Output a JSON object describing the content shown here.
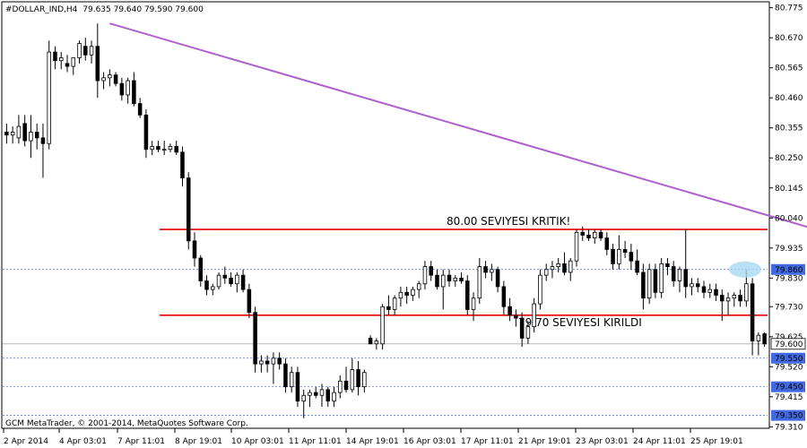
{
  "header": {
    "symbol": "#DOLLAR_IND,H4",
    "ohlc": "79.635 79.640 79.590 79.600"
  },
  "footer": {
    "copyright": "GCM MetaTrader, © 2001-2014, MetaQuotes Software Corp."
  },
  "chart_data": {
    "type": "candlestick",
    "ylim": [
      79.33,
      80.78
    ],
    "y_ticks": [
      "80.775",
      "80.670",
      "80.565",
      "80.460",
      "80.355",
      "80.250",
      "80.145",
      "80.040",
      "79.935",
      "79.830",
      "79.730",
      "79.625",
      "79.520",
      "79.415",
      "79.310"
    ],
    "x_ticks": [
      "2 Apr 2014",
      "4 Apr 03:01",
      "7 Apr 11:01",
      "8 Apr 19:01",
      "10 Apr 03:01",
      "11 Apr 11:01",
      "14 Apr 19:01",
      "16 Apr 03:01",
      "17 Apr 11:01",
      "21 Apr 19:01",
      "23 Apr 03:01",
      "24 Apr 11:01",
      "25 Apr 19:01"
    ],
    "price_labels": [
      {
        "value": 79.86,
        "text": "79.860"
      },
      {
        "value": 79.6,
        "text": "79.600"
      },
      {
        "value": 79.55,
        "text": "79.550"
      },
      {
        "value": 79.45,
        "text": "79.450"
      },
      {
        "value": 79.35,
        "text": "79.350"
      }
    ],
    "levels": [
      {
        "value": 80.0,
        "color": "#e60000",
        "label": "80.00 SEVIYESI KRITIK!"
      },
      {
        "value": 79.7,
        "color": "#e60000",
        "label": "79.70 SEVIYESI KIRILDI"
      }
    ],
    "dashed_levels": [
      79.86,
      79.55,
      79.45,
      79.35
    ],
    "trendline": {
      "x": [
        17,
        161
      ],
      "y": [
        80.72,
        79.83
      ],
      "color": "#b05fd0"
    },
    "candles": [
      {
        "o": 80.34,
        "h": 80.37,
        "l": 80.3,
        "c": 80.33
      },
      {
        "o": 80.33,
        "h": 80.36,
        "l": 80.3,
        "c": 80.34
      },
      {
        "o": 80.32,
        "h": 80.4,
        "l": 80.3,
        "c": 80.36
      },
      {
        "o": 80.37,
        "h": 80.4,
        "l": 80.29,
        "c": 80.31
      },
      {
        "o": 80.31,
        "h": 80.4,
        "l": 80.25,
        "c": 80.34
      },
      {
        "o": 80.34,
        "h": 80.37,
        "l": 80.28,
        "c": 80.32
      },
      {
        "o": 80.32,
        "h": 80.37,
        "l": 80.18,
        "c": 80.3
      },
      {
        "o": 80.3,
        "h": 80.66,
        "l": 80.28,
        "c": 80.62
      },
      {
        "o": 80.62,
        "h": 80.64,
        "l": 80.56,
        "c": 80.59
      },
      {
        "o": 80.59,
        "h": 80.62,
        "l": 80.56,
        "c": 80.6
      },
      {
        "o": 80.58,
        "h": 80.61,
        "l": 80.55,
        "c": 80.57
      },
      {
        "o": 80.57,
        "h": 80.6,
        "l": 80.54,
        "c": 80.6
      },
      {
        "o": 80.6,
        "h": 80.66,
        "l": 80.58,
        "c": 80.65
      },
      {
        "o": 80.64,
        "h": 80.67,
        "l": 80.59,
        "c": 80.61
      },
      {
        "o": 80.61,
        "h": 80.66,
        "l": 80.58,
        "c": 80.64
      },
      {
        "o": 80.64,
        "h": 80.72,
        "l": 80.46,
        "c": 80.52
      },
      {
        "o": 80.52,
        "h": 80.55,
        "l": 80.49,
        "c": 80.53
      },
      {
        "o": 80.53,
        "h": 80.56,
        "l": 80.5,
        "c": 80.54
      },
      {
        "o": 80.54,
        "h": 80.55,
        "l": 80.5,
        "c": 80.51
      },
      {
        "o": 80.51,
        "h": 80.53,
        "l": 80.45,
        "c": 80.47
      },
      {
        "o": 80.47,
        "h": 80.53,
        "l": 80.44,
        "c": 80.52
      },
      {
        "o": 80.52,
        "h": 80.55,
        "l": 80.43,
        "c": 80.44
      },
      {
        "o": 80.44,
        "h": 80.46,
        "l": 80.39,
        "c": 80.4
      },
      {
        "o": 80.4,
        "h": 80.42,
        "l": 80.25,
        "c": 80.28
      },
      {
        "o": 80.28,
        "h": 80.31,
        "l": 80.26,
        "c": 80.29
      },
      {
        "o": 80.29,
        "h": 80.31,
        "l": 80.27,
        "c": 80.28
      },
      {
        "o": 80.28,
        "h": 80.31,
        "l": 80.26,
        "c": 80.28
      },
      {
        "o": 80.28,
        "h": 80.3,
        "l": 80.27,
        "c": 80.29
      },
      {
        "o": 80.29,
        "h": 80.31,
        "l": 80.26,
        "c": 80.27
      },
      {
        "o": 80.27,
        "h": 80.29,
        "l": 80.15,
        "c": 80.18
      },
      {
        "o": 80.18,
        "h": 80.2,
        "l": 79.93,
        "c": 79.96
      },
      {
        "o": 79.96,
        "h": 79.99,
        "l": 79.87,
        "c": 79.9
      },
      {
        "o": 79.9,
        "h": 79.91,
        "l": 79.8,
        "c": 79.82
      },
      {
        "o": 79.82,
        "h": 79.84,
        "l": 79.77,
        "c": 79.79
      },
      {
        "o": 79.79,
        "h": 79.81,
        "l": 79.77,
        "c": 79.8
      },
      {
        "o": 79.8,
        "h": 79.85,
        "l": 79.79,
        "c": 79.84
      },
      {
        "o": 79.84,
        "h": 79.87,
        "l": 79.81,
        "c": 79.83
      },
      {
        "o": 79.83,
        "h": 79.85,
        "l": 79.8,
        "c": 79.81
      },
      {
        "o": 79.81,
        "h": 79.85,
        "l": 79.78,
        "c": 79.84
      },
      {
        "o": 79.84,
        "h": 79.86,
        "l": 79.78,
        "c": 79.79
      },
      {
        "o": 79.79,
        "h": 79.81,
        "l": 79.69,
        "c": 79.71
      },
      {
        "o": 79.71,
        "h": 79.73,
        "l": 79.5,
        "c": 79.53
      },
      {
        "o": 79.53,
        "h": 79.56,
        "l": 79.5,
        "c": 79.54
      },
      {
        "o": 79.54,
        "h": 79.56,
        "l": 79.5,
        "c": 79.53
      },
      {
        "o": 79.53,
        "h": 79.57,
        "l": 79.46,
        "c": 79.55
      },
      {
        "o": 79.55,
        "h": 79.57,
        "l": 79.51,
        "c": 79.53
      },
      {
        "o": 79.53,
        "h": 79.55,
        "l": 79.43,
        "c": 79.45
      },
      {
        "o": 79.45,
        "h": 79.52,
        "l": 79.43,
        "c": 79.5
      },
      {
        "o": 79.5,
        "h": 79.52,
        "l": 79.38,
        "c": 79.4
      },
      {
        "o": 79.4,
        "h": 79.44,
        "l": 79.34,
        "c": 79.42
      },
      {
        "o": 79.42,
        "h": 79.44,
        "l": 79.38,
        "c": 79.43
      },
      {
        "o": 79.43,
        "h": 79.45,
        "l": 79.41,
        "c": 79.42
      },
      {
        "o": 79.42,
        "h": 79.46,
        "l": 79.38,
        "c": 79.44
      },
      {
        "o": 79.44,
        "h": 79.45,
        "l": 79.38,
        "c": 79.4
      },
      {
        "o": 79.4,
        "h": 79.45,
        "l": 79.38,
        "c": 79.43
      },
      {
        "o": 79.43,
        "h": 79.49,
        "l": 79.41,
        "c": 79.47
      },
      {
        "o": 79.47,
        "h": 79.52,
        "l": 79.43,
        "c": 79.44
      },
      {
        "o": 79.44,
        "h": 79.55,
        "l": 79.43,
        "c": 79.51
      },
      {
        "o": 79.51,
        "h": 79.54,
        "l": 79.42,
        "c": 79.45
      },
      {
        "o": 79.45,
        "h": 79.51,
        "l": 79.43,
        "c": 79.5
      },
      {
        "o": 79.62,
        "h": 79.63,
        "l": 79.6,
        "c": 79.6
      },
      {
        "o": 79.6,
        "h": 79.62,
        "l": 79.58,
        "c": 79.61
      },
      {
        "o": 79.6,
        "h": 79.74,
        "l": 79.58,
        "c": 79.73
      },
      {
        "o": 79.73,
        "h": 79.77,
        "l": 79.7,
        "c": 79.72
      },
      {
        "o": 79.72,
        "h": 79.77,
        "l": 79.7,
        "c": 79.76
      },
      {
        "o": 79.76,
        "h": 79.8,
        "l": 79.73,
        "c": 79.78
      },
      {
        "o": 79.78,
        "h": 79.8,
        "l": 79.74,
        "c": 79.77
      },
      {
        "o": 79.77,
        "h": 79.8,
        "l": 79.75,
        "c": 79.79
      },
      {
        "o": 79.79,
        "h": 79.82,
        "l": 79.76,
        "c": 79.81
      },
      {
        "o": 79.81,
        "h": 79.89,
        "l": 79.79,
        "c": 79.87
      },
      {
        "o": 79.87,
        "h": 79.89,
        "l": 79.82,
        "c": 79.84
      },
      {
        "o": 79.84,
        "h": 79.86,
        "l": 79.79,
        "c": 79.8
      },
      {
        "o": 79.8,
        "h": 79.86,
        "l": 79.72,
        "c": 79.84
      },
      {
        "o": 79.84,
        "h": 79.86,
        "l": 79.8,
        "c": 79.82
      },
      {
        "o": 79.82,
        "h": 79.84,
        "l": 79.8,
        "c": 79.83
      },
      {
        "o": 79.83,
        "h": 79.85,
        "l": 79.81,
        "c": 79.82
      },
      {
        "o": 79.82,
        "h": 79.84,
        "l": 79.7,
        "c": 79.72
      },
      {
        "o": 79.72,
        "h": 79.78,
        "l": 79.68,
        "c": 79.76
      },
      {
        "o": 79.76,
        "h": 79.9,
        "l": 79.74,
        "c": 79.87
      },
      {
        "o": 79.87,
        "h": 79.89,
        "l": 79.83,
        "c": 79.85
      },
      {
        "o": 79.85,
        "h": 79.88,
        "l": 79.82,
        "c": 79.86
      },
      {
        "o": 79.86,
        "h": 79.87,
        "l": 79.78,
        "c": 79.8
      },
      {
        "o": 79.8,
        "h": 79.82,
        "l": 79.7,
        "c": 79.73
      },
      {
        "o": 79.73,
        "h": 79.76,
        "l": 79.68,
        "c": 79.7
      },
      {
        "o": 79.7,
        "h": 79.72,
        "l": 79.66,
        "c": 79.69
      },
      {
        "o": 79.69,
        "h": 79.71,
        "l": 79.59,
        "c": 79.62
      },
      {
        "o": 79.62,
        "h": 79.68,
        "l": 79.6,
        "c": 79.66
      },
      {
        "o": 79.66,
        "h": 79.76,
        "l": 79.64,
        "c": 79.74
      },
      {
        "o": 79.74,
        "h": 79.86,
        "l": 79.72,
        "c": 79.84
      },
      {
        "o": 79.84,
        "h": 79.88,
        "l": 79.82,
        "c": 79.86
      },
      {
        "o": 79.86,
        "h": 79.89,
        "l": 79.83,
        "c": 79.87
      },
      {
        "o": 79.87,
        "h": 79.9,
        "l": 79.85,
        "c": 79.88
      },
      {
        "o": 79.88,
        "h": 79.92,
        "l": 79.84,
        "c": 79.85
      },
      {
        "o": 79.85,
        "h": 79.9,
        "l": 79.82,
        "c": 79.89
      },
      {
        "o": 79.89,
        "h": 80.0,
        "l": 79.87,
        "c": 79.99
      },
      {
        "o": 79.99,
        "h": 80.01,
        "l": 79.96,
        "c": 79.98
      },
      {
        "o": 79.98,
        "h": 80.0,
        "l": 79.96,
        "c": 79.97
      },
      {
        "o": 79.97,
        "h": 80.0,
        "l": 79.95,
        "c": 79.99
      },
      {
        "o": 79.99,
        "h": 80.0,
        "l": 79.96,
        "c": 79.97
      },
      {
        "o": 79.97,
        "h": 79.99,
        "l": 79.91,
        "c": 79.93
      },
      {
        "o": 79.93,
        "h": 79.95,
        "l": 79.86,
        "c": 79.88
      },
      {
        "o": 79.88,
        "h": 79.98,
        "l": 79.86,
        "c": 79.93
      },
      {
        "o": 79.93,
        "h": 79.96,
        "l": 79.9,
        "c": 79.92
      },
      {
        "o": 79.92,
        "h": 79.95,
        "l": 79.86,
        "c": 79.89
      },
      {
        "o": 79.89,
        "h": 79.93,
        "l": 79.84,
        "c": 79.85
      },
      {
        "o": 79.85,
        "h": 79.88,
        "l": 79.72,
        "c": 79.76
      },
      {
        "o": 79.76,
        "h": 79.88,
        "l": 79.74,
        "c": 79.86
      },
      {
        "o": 79.86,
        "h": 79.88,
        "l": 79.76,
        "c": 79.78
      },
      {
        "o": 79.78,
        "h": 79.9,
        "l": 79.76,
        "c": 79.88
      },
      {
        "o": 79.88,
        "h": 79.9,
        "l": 79.84,
        "c": 79.87
      },
      {
        "o": 79.87,
        "h": 79.89,
        "l": 79.8,
        "c": 79.82
      },
      {
        "o": 79.82,
        "h": 79.87,
        "l": 79.78,
        "c": 79.86
      },
      {
        "o": 79.86,
        "h": 80.0,
        "l": 79.76,
        "c": 79.8
      },
      {
        "o": 79.8,
        "h": 79.83,
        "l": 79.77,
        "c": 79.81
      },
      {
        "o": 79.81,
        "h": 79.83,
        "l": 79.78,
        "c": 79.8
      },
      {
        "o": 79.8,
        "h": 79.82,
        "l": 79.76,
        "c": 79.78
      },
      {
        "o": 79.78,
        "h": 79.81,
        "l": 79.76,
        "c": 79.79
      },
      {
        "o": 79.79,
        "h": 79.81,
        "l": 79.75,
        "c": 79.77
      },
      {
        "o": 79.77,
        "h": 79.79,
        "l": 79.68,
        "c": 79.75
      },
      {
        "o": 79.75,
        "h": 79.78,
        "l": 79.7,
        "c": 79.76
      },
      {
        "o": 79.76,
        "h": 79.78,
        "l": 79.73,
        "c": 79.77
      },
      {
        "o": 79.77,
        "h": 79.79,
        "l": 79.73,
        "c": 79.75
      },
      {
        "o": 79.75,
        "h": 79.86,
        "l": 79.73,
        "c": 79.81
      },
      {
        "o": 79.81,
        "h": 79.83,
        "l": 79.56,
        "c": 79.61
      },
      {
        "o": 79.61,
        "h": 79.64,
        "l": 79.56,
        "c": 79.63
      },
      {
        "o": 79.635,
        "h": 79.64,
        "l": 79.59,
        "c": 79.6
      }
    ]
  }
}
